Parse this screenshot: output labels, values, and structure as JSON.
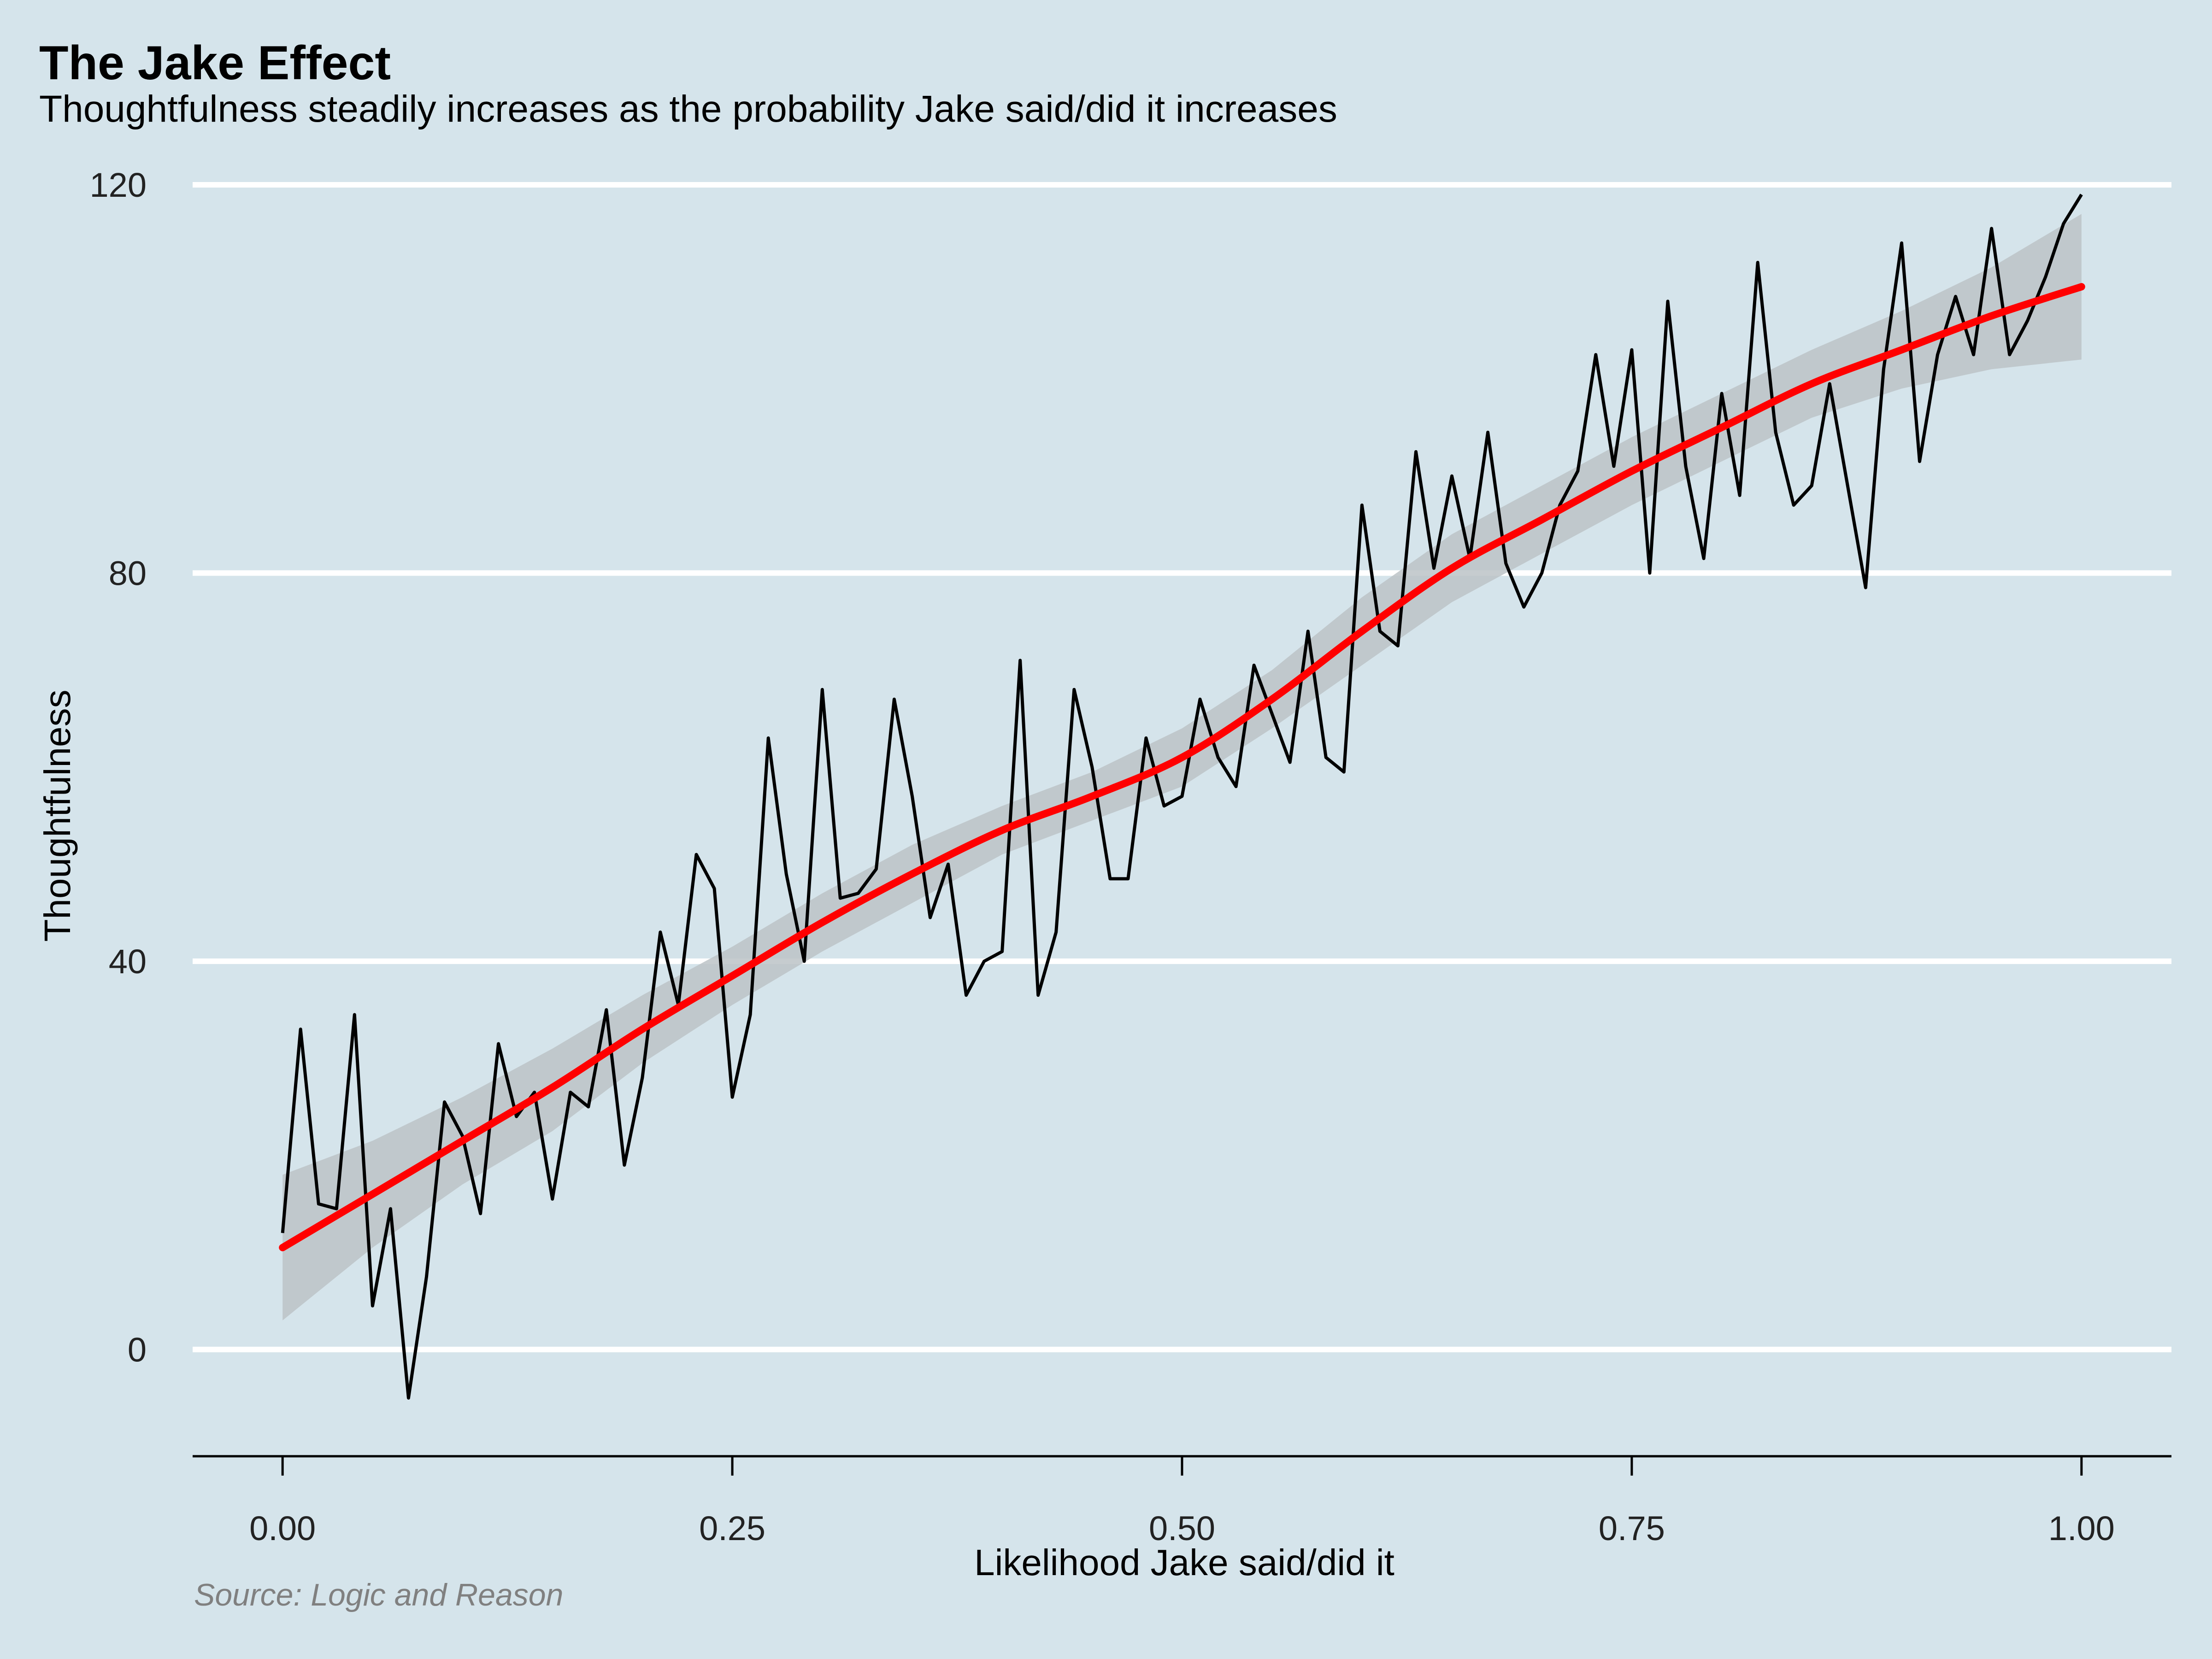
{
  "chart_data": {
    "type": "line",
    "title": "The Jake Effect",
    "subtitle": "Thoughtfulness steadily increases as the probability Jake said/did it increases",
    "caption": "Source: Logic and Reason",
    "xlabel": "Likelihood Jake said/did it",
    "ylabel": "Thoughtfulness",
    "xlim": [
      -0.05,
      1.05
    ],
    "ylim": [
      -11,
      121
    ],
    "x_ticks": [
      0,
      0.25,
      0.5,
      0.75,
      1
    ],
    "x_tick_labels": [
      "0.00",
      "0.25",
      "0.50",
      "0.75",
      "1.00"
    ],
    "y_ticks": [
      0,
      40,
      80,
      120
    ],
    "y_tick_labels": [
      "0",
      "40",
      "80",
      "120"
    ],
    "grid": "horizontal major",
    "legend": "none",
    "series": [
      {
        "type": "line",
        "color": "#000000",
        "x": [
          0.0,
          0.01,
          0.02,
          0.03,
          0.04,
          0.05,
          0.06,
          0.07,
          0.08,
          0.09,
          0.1,
          0.11,
          0.12,
          0.13,
          0.14,
          0.15,
          0.16,
          0.17,
          0.18,
          0.19,
          0.2,
          0.21,
          0.22,
          0.23,
          0.24,
          0.25,
          0.26,
          0.27,
          0.28,
          0.29,
          0.3,
          0.31,
          0.32,
          0.33,
          0.34,
          0.35,
          0.36,
          0.37,
          0.38,
          0.39,
          0.4,
          0.41,
          0.42,
          0.43,
          0.44,
          0.45,
          0.46,
          0.47,
          0.48,
          0.49,
          0.5,
          0.51,
          0.52,
          0.53,
          0.54,
          0.55,
          0.56,
          0.57,
          0.58,
          0.59,
          0.6,
          0.61,
          0.62,
          0.63,
          0.64,
          0.65,
          0.66,
          0.67,
          0.68,
          0.69,
          0.7,
          0.71,
          0.72,
          0.73,
          0.74,
          0.75,
          0.76,
          0.77,
          0.78,
          0.79,
          0.8,
          0.81,
          0.82,
          0.83,
          0.84,
          0.85,
          0.86,
          0.87,
          0.88,
          0.89,
          0.9,
          0.91,
          0.92,
          0.93,
          0.94,
          0.95,
          0.96,
          0.97,
          0.98,
          0.99,
          1.0
        ],
        "y": [
          12,
          33,
          15,
          14.5,
          34.5,
          4.5,
          14.5,
          -5,
          7.5,
          25.5,
          22,
          14,
          31.5,
          24,
          26.5,
          15.5,
          26.5,
          25,
          35,
          19,
          28,
          43,
          35.5,
          51,
          47.5,
          26,
          34.5,
          63,
          49,
          40,
          68,
          46.5,
          47,
          49.5,
          67,
          57,
          44.5,
          50,
          36.5,
          40,
          41,
          71,
          36.5,
          43,
          68,
          60,
          48.5,
          48.5,
          63,
          56,
          57,
          67,
          61,
          58,
          70.5,
          65.5,
          60.5,
          74,
          61,
          59.5,
          87,
          74,
          72.5,
          92.5,
          80.5,
          90,
          81.5,
          94.5,
          81,
          76.5,
          80,
          87,
          90.5,
          102.5,
          91,
          103,
          80,
          108,
          91,
          81.5,
          98.5,
          88,
          112,
          94.5,
          87,
          89,
          99.5,
          89,
          78.5,
          101,
          114,
          91.5,
          102.5,
          108.5,
          102.5,
          115.5,
          102.5,
          106,
          110.5,
          116,
          119
        ]
      },
      {
        "type": "smooth",
        "color": "#ff0000",
        "x": [
          0,
          0.05,
          0.1,
          0.15,
          0.2,
          0.25,
          0.3,
          0.35,
          0.4,
          0.45,
          0.5,
          0.55,
          0.6,
          0.65,
          0.7,
          0.75,
          0.8,
          0.85,
          0.9,
          0.95,
          1.0
        ],
        "y": [
          10.5,
          16,
          21.5,
          27,
          33,
          38.5,
          44,
          49,
          53.5,
          57,
          61,
          67,
          74,
          80.5,
          85.5,
          90.5,
          95,
          99.5,
          103,
          106.5,
          109.5
        ],
        "ci_lower": [
          3,
          10.5,
          17,
          22.5,
          29.5,
          35.5,
          41,
          46,
          51,
          54.5,
          58,
          64,
          70.5,
          77,
          82,
          87,
          91.5,
          96,
          99,
          101,
          102
        ],
        "ci_upper": [
          18,
          21.5,
          26,
          31,
          36.5,
          41.5,
          47,
          52,
          56,
          59.5,
          64,
          70,
          77.5,
          84,
          89,
          94,
          98.5,
          103,
          107,
          111.5,
          117
        ]
      }
    ],
    "colors": {
      "background": "#d5e4eb",
      "grid": "#ffffff",
      "ci_band": "#bcc3c7"
    }
  }
}
